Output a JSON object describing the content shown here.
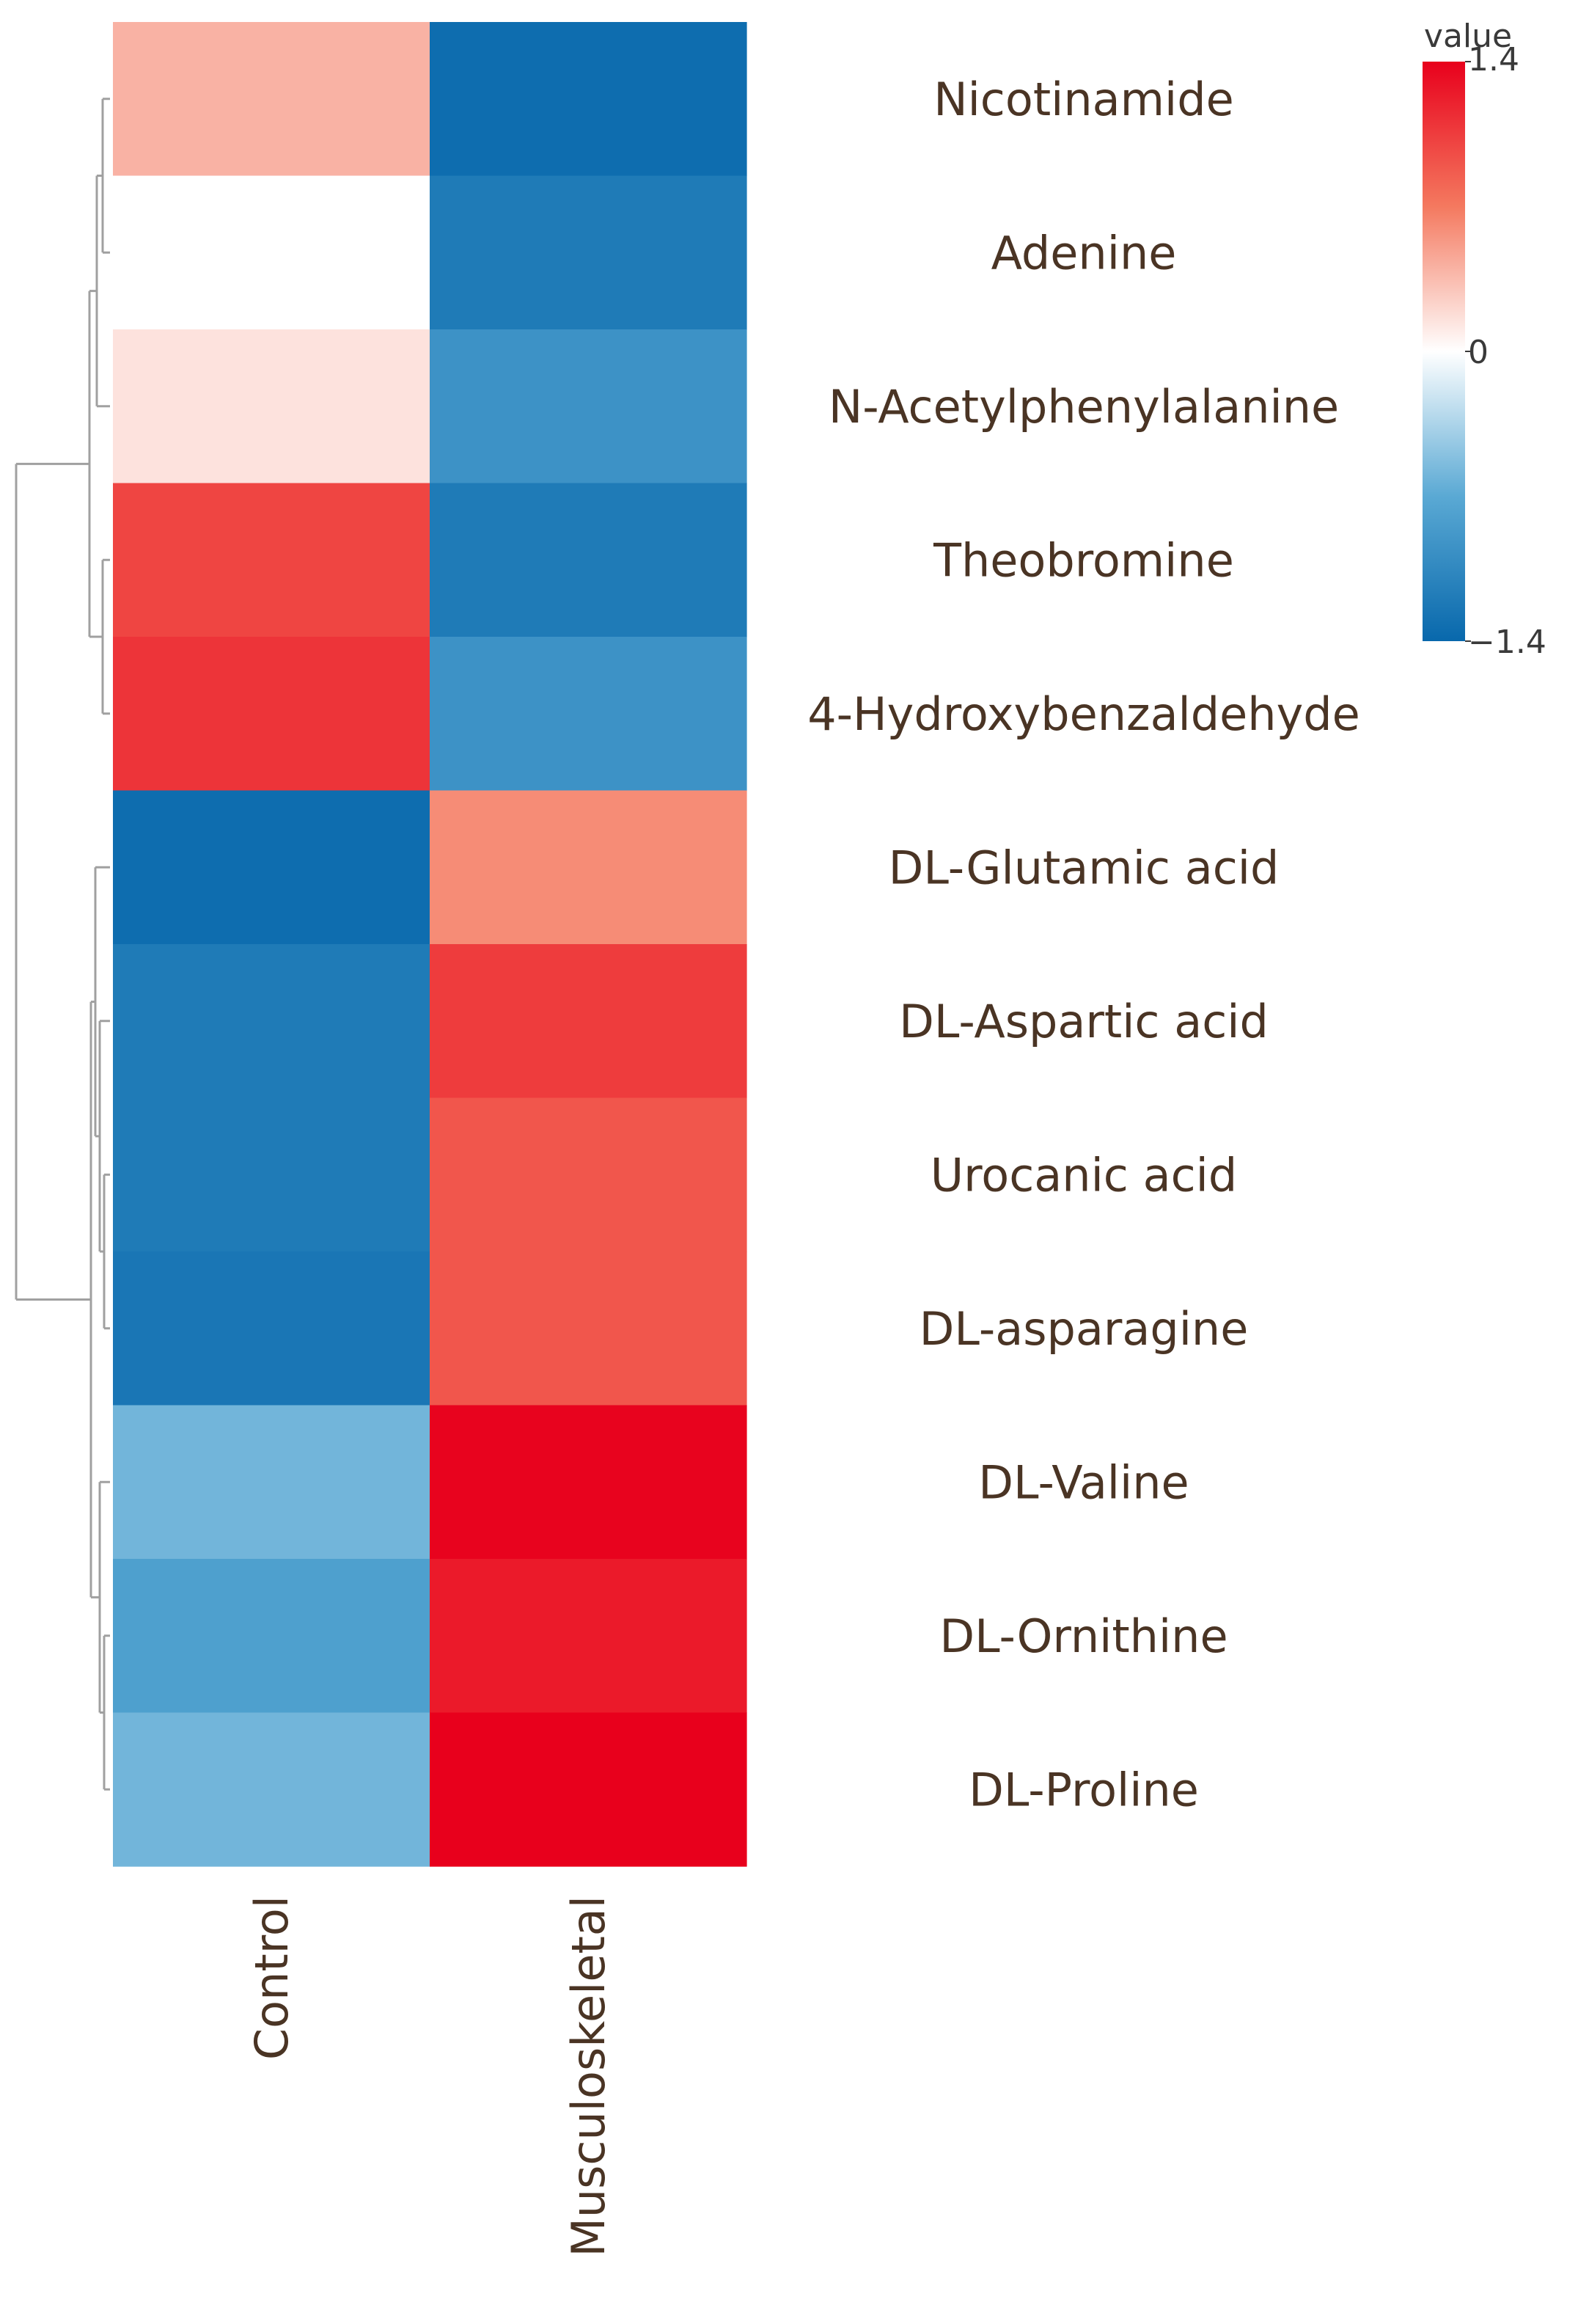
{
  "chart_data": {
    "type": "heatmap",
    "rows": [
      "Nicotinamide",
      "Adenine",
      "N-Acetylphenylalanine",
      "Theobromine",
      "4-Hydroxybenzaldehyde",
      "DL-Glutamic acid",
      "DL-Aspartic acid",
      "Urocanic acid",
      "DL-asparagine",
      "DL-Valine",
      "DL-Ornithine",
      "DL-Proline"
    ],
    "columns": [
      "Control",
      "Musculoskeletal"
    ],
    "values": [
      [
        0.4,
        -1.35
      ],
      [
        0.0,
        -1.2
      ],
      [
        0.15,
        -0.95
      ],
      [
        1.0,
        -1.2
      ],
      [
        1.1,
        -0.95
      ],
      [
        -1.35,
        0.6
      ],
      [
        -1.2,
        1.05
      ],
      [
        -1.2,
        0.9
      ],
      [
        -1.25,
        0.9
      ],
      [
        -0.6,
        1.38
      ],
      [
        -0.8,
        1.25
      ],
      [
        -0.6,
        1.4
      ]
    ],
    "legend": {
      "title": "value",
      "min": -1.4,
      "max": 1.4,
      "ticks": [
        {
          "value": 1.4,
          "label": "1.4"
        },
        {
          "value": 0,
          "label": "0"
        },
        {
          "value": -1.4,
          "label": "−1.4"
        }
      ],
      "placement": "top-right"
    },
    "colors": {
      "low": "#0868ac",
      "mid": "#ffffff",
      "high": "#e8001c"
    },
    "row_dendrogram": true
  }
}
